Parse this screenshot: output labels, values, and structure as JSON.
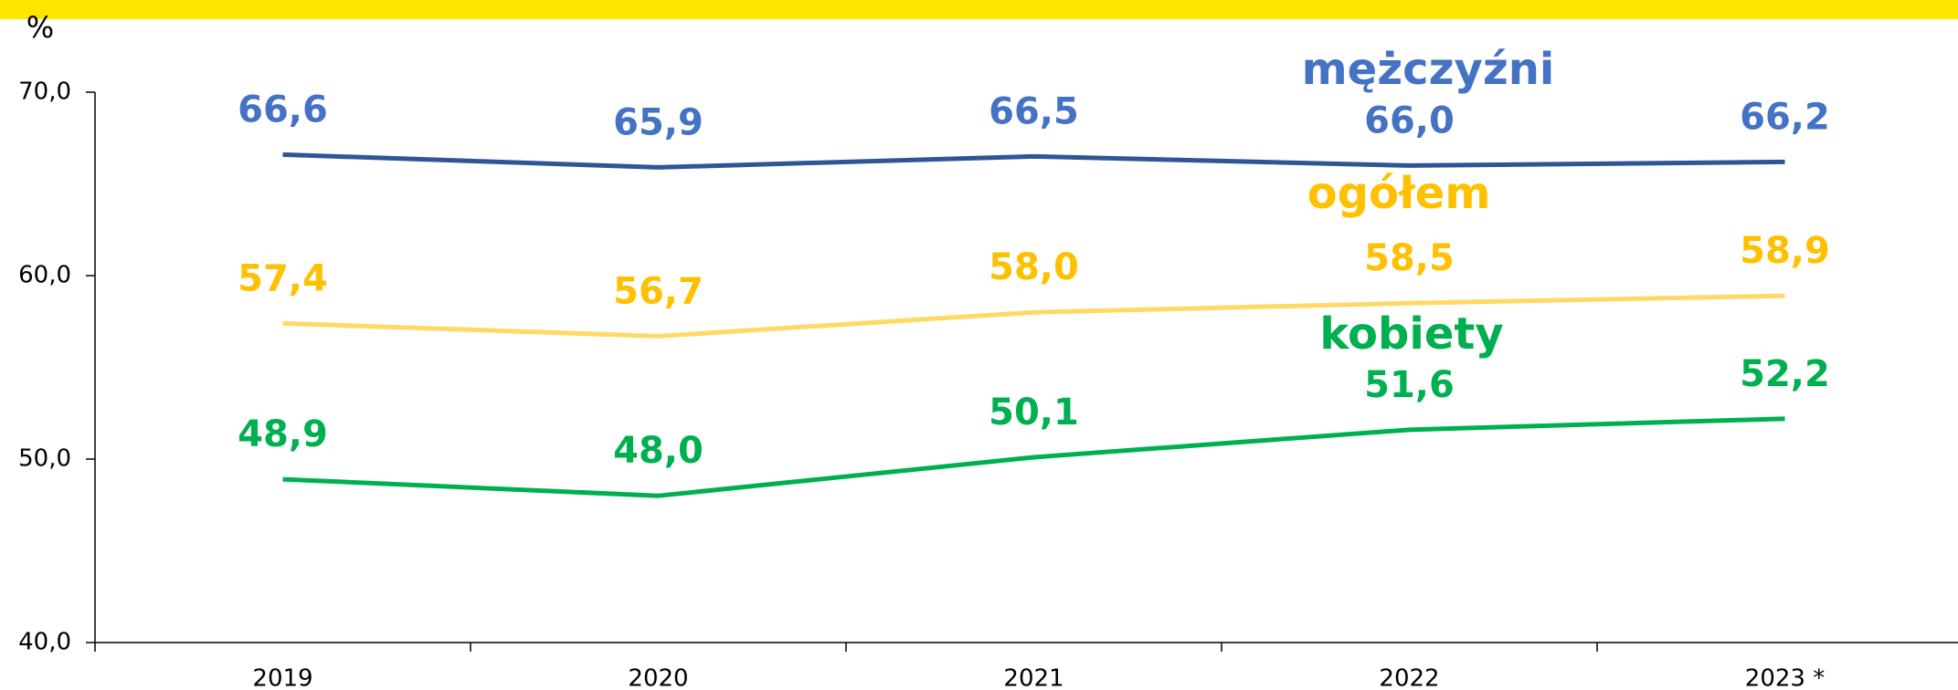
{
  "chart_data": {
    "type": "line",
    "y_label": "%",
    "categories": [
      "2019",
      "2020",
      "2021",
      "2022",
      "2023 *"
    ],
    "series": [
      {
        "name": "mężczyźni",
        "color": "#2f5597",
        "label_color": "#4472c4",
        "values": [
          66.6,
          65.9,
          66.5,
          66.0,
          66.2
        ],
        "value_labels": [
          "66,6",
          "65,9",
          "66,5",
          "66,0",
          "66,2"
        ]
      },
      {
        "name": "ogółem",
        "color": "#ffd966",
        "label_color": "#ffc000",
        "values": [
          57.4,
          56.7,
          58.0,
          58.5,
          58.9
        ],
        "value_labels": [
          "57,4",
          "56,7",
          "58,0",
          "58,5",
          "58,9"
        ]
      },
      {
        "name": "kobiety",
        "color": "#00b050",
        "label_color": "#00b050",
        "values": [
          48.9,
          48.0,
          50.1,
          51.6,
          52.2
        ],
        "value_labels": [
          "48,9",
          "48,0",
          "50,1",
          "51,6",
          "52,2"
        ]
      }
    ],
    "ylim": [
      40,
      70
    ],
    "yticks": [
      {
        "value": 40,
        "label": "40,0"
      },
      {
        "value": 50,
        "label": "50,0"
      },
      {
        "value": 60,
        "label": "60,0"
      },
      {
        "value": 70,
        "label": "70,0"
      }
    ],
    "grid": false
  }
}
